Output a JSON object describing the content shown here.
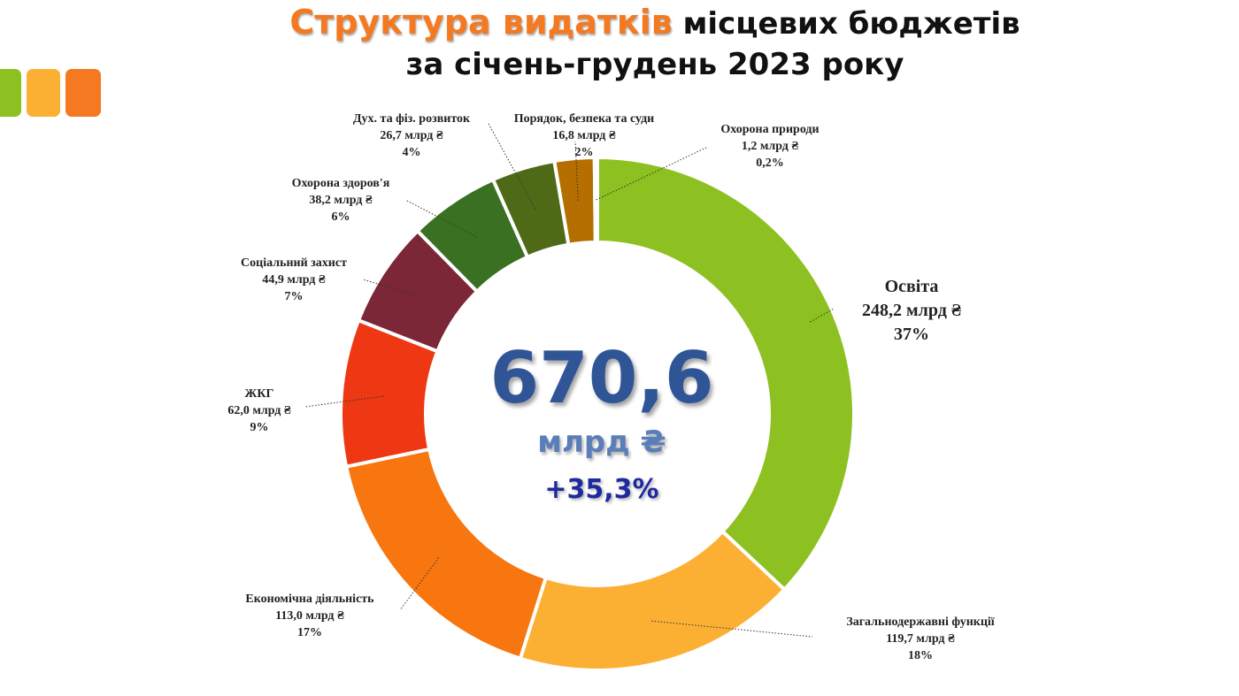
{
  "title": {
    "accent": "Структура видатків",
    "rest": " місцевих бюджетів",
    "line2": "за січень-грудень 2023 року"
  },
  "center": {
    "total": "670,6",
    "unit": "млрд ₴",
    "change": "+35,3%"
  },
  "colors": {
    "accent_orange": "#F47920",
    "decor_green": "#8DC021",
    "decor_yellow": "#FBB034",
    "total_blue": "#2F5597",
    "change_blue": "#1F2A9E"
  },
  "chart_data": {
    "type": "pie",
    "variant": "donut",
    "unit": "млрд ₴",
    "total": 670.6,
    "start": "top, clockwise",
    "slices": [
      {
        "name": "Освіта",
        "value": 248.2,
        "value_label": "248,2 млрд ₴",
        "percent_label": "37%",
        "color": "#8DC021"
      },
      {
        "name": "Загальнодержавні функції",
        "value": 119.7,
        "value_label": "119,7 млрд ₴",
        "percent_label": "18%",
        "color": "#FBB034"
      },
      {
        "name": "Економічна діяльність",
        "value": 113.0,
        "value_label": "113,0 млрд ₴",
        "percent_label": "17%",
        "color": "#F7760F"
      },
      {
        "name": "ЖКГ",
        "value": 62.0,
        "value_label": "62,0 млрд ₴",
        "percent_label": "9%",
        "color": "#EE3814"
      },
      {
        "name": "Соціальний захист",
        "value": 44.9,
        "value_label": "44,9 млрд ₴",
        "percent_label": "7%",
        "color": "#7B2738"
      },
      {
        "name": "Охорона здоров'я",
        "value": 38.2,
        "value_label": "38,2 млрд ₴",
        "percent_label": "6%",
        "color": "#3A7022"
      },
      {
        "name": "Дух. та фіз. розвиток",
        "value": 26.7,
        "value_label": "26,7 млрд ₴",
        "percent_label": "4%",
        "color": "#4F6A17"
      },
      {
        "name": "Порядок, безпека та суди",
        "value": 16.8,
        "value_label": "16,8 млрд ₴",
        "percent_label": "2%",
        "color": "#B56E00"
      },
      {
        "name": "Охорона природи",
        "value": 1.2,
        "value_label": "1,2 млрд ₴",
        "percent_label": "0,2%",
        "color": "#E7A10C"
      }
    ]
  }
}
